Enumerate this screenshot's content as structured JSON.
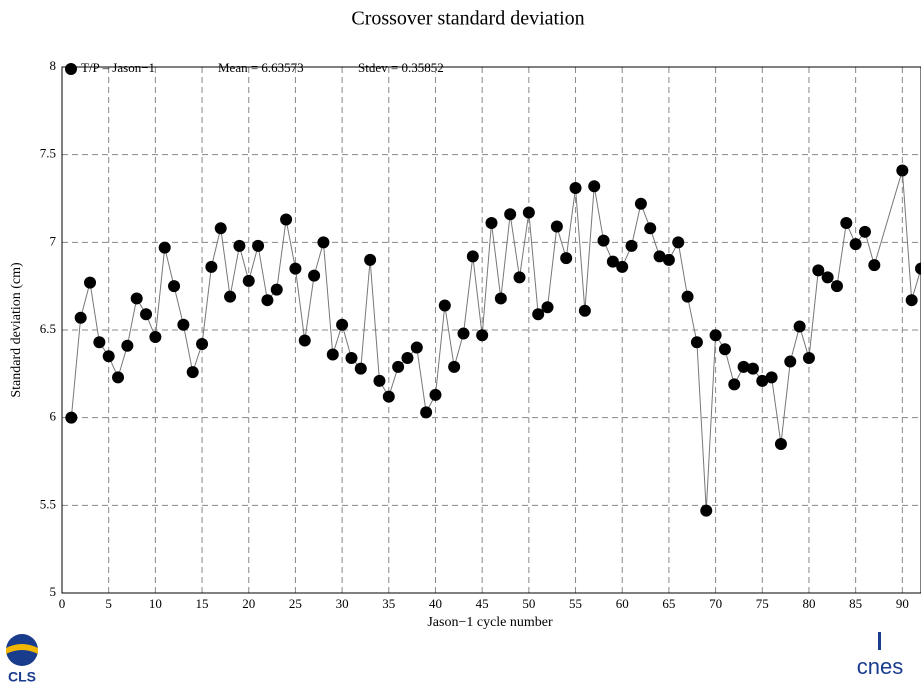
{
  "chart_data": {
    "type": "line",
    "title": "Crossover standard deviation",
    "xlabel": "Jason−1 cycle number",
    "ylabel": "Standard deviation (cm)",
    "annotations": [
      "Mean = 6.63573",
      "Stdev = 0.35852"
    ],
    "x": [
      1,
      2,
      3,
      4,
      5,
      6,
      7,
      8,
      9,
      10,
      11,
      12,
      13,
      14,
      15,
      16,
      17,
      18,
      19,
      20,
      21,
      22,
      23,
      24,
      25,
      26,
      27,
      28,
      29,
      30,
      31,
      32,
      33,
      34,
      35,
      36,
      37,
      38,
      39,
      40,
      41,
      42,
      43,
      44,
      45,
      46,
      47,
      48,
      49,
      50,
      51,
      52,
      53,
      54,
      55,
      56,
      57,
      58,
      59,
      60,
      61,
      62,
      63,
      64,
      65,
      66,
      67,
      68,
      69,
      70,
      71,
      72,
      73,
      74,
      75,
      76,
      77,
      78,
      79,
      80,
      81,
      82,
      83,
      84,
      85,
      86,
      87,
      90,
      91,
      92
    ],
    "series": [
      {
        "name": "T/P – Jason−1",
        "color": "#000000",
        "line_color": "#777777",
        "values": [
          6.0,
          6.57,
          6.77,
          6.43,
          6.35,
          6.23,
          6.41,
          6.68,
          6.59,
          6.46,
          6.97,
          6.75,
          6.53,
          6.26,
          6.42,
          6.86,
          7.08,
          6.69,
          6.98,
          6.78,
          6.98,
          6.67,
          6.73,
          7.13,
          6.85,
          6.44,
          6.81,
          7.0,
          6.36,
          6.53,
          6.34,
          6.28,
          6.9,
          6.21,
          6.12,
          6.29,
          6.34,
          6.4,
          6.03,
          6.13,
          6.64,
          6.29,
          6.48,
          6.92,
          6.47,
          7.11,
          6.68,
          7.16,
          6.8,
          7.17,
          6.59,
          6.63,
          7.09,
          6.91,
          7.31,
          6.61,
          7.32,
          7.01,
          6.89,
          6.86,
          6.98,
          7.22,
          7.08,
          6.92,
          6.9,
          7.0,
          6.69,
          6.43,
          5.47,
          6.47,
          6.39,
          6.19,
          6.29,
          6.28,
          6.21,
          6.23,
          5.85,
          6.32,
          6.52,
          6.34,
          6.84,
          6.8,
          6.75,
          7.11,
          6.99,
          7.06,
          6.87,
          7.41,
          6.67,
          6.85
        ]
      }
    ],
    "xlim": [
      0,
      92
    ],
    "ylim": [
      5,
      8
    ],
    "xticks": [
      0,
      5,
      10,
      15,
      20,
      25,
      30,
      35,
      40,
      45,
      50,
      55,
      60,
      65,
      70,
      75,
      80,
      85,
      90
    ],
    "yticks": [
      5,
      5.5,
      6,
      6.5,
      7,
      7.5,
      8
    ],
    "grid": true
  },
  "logos": {
    "left": "CLS",
    "right": "cnes"
  }
}
